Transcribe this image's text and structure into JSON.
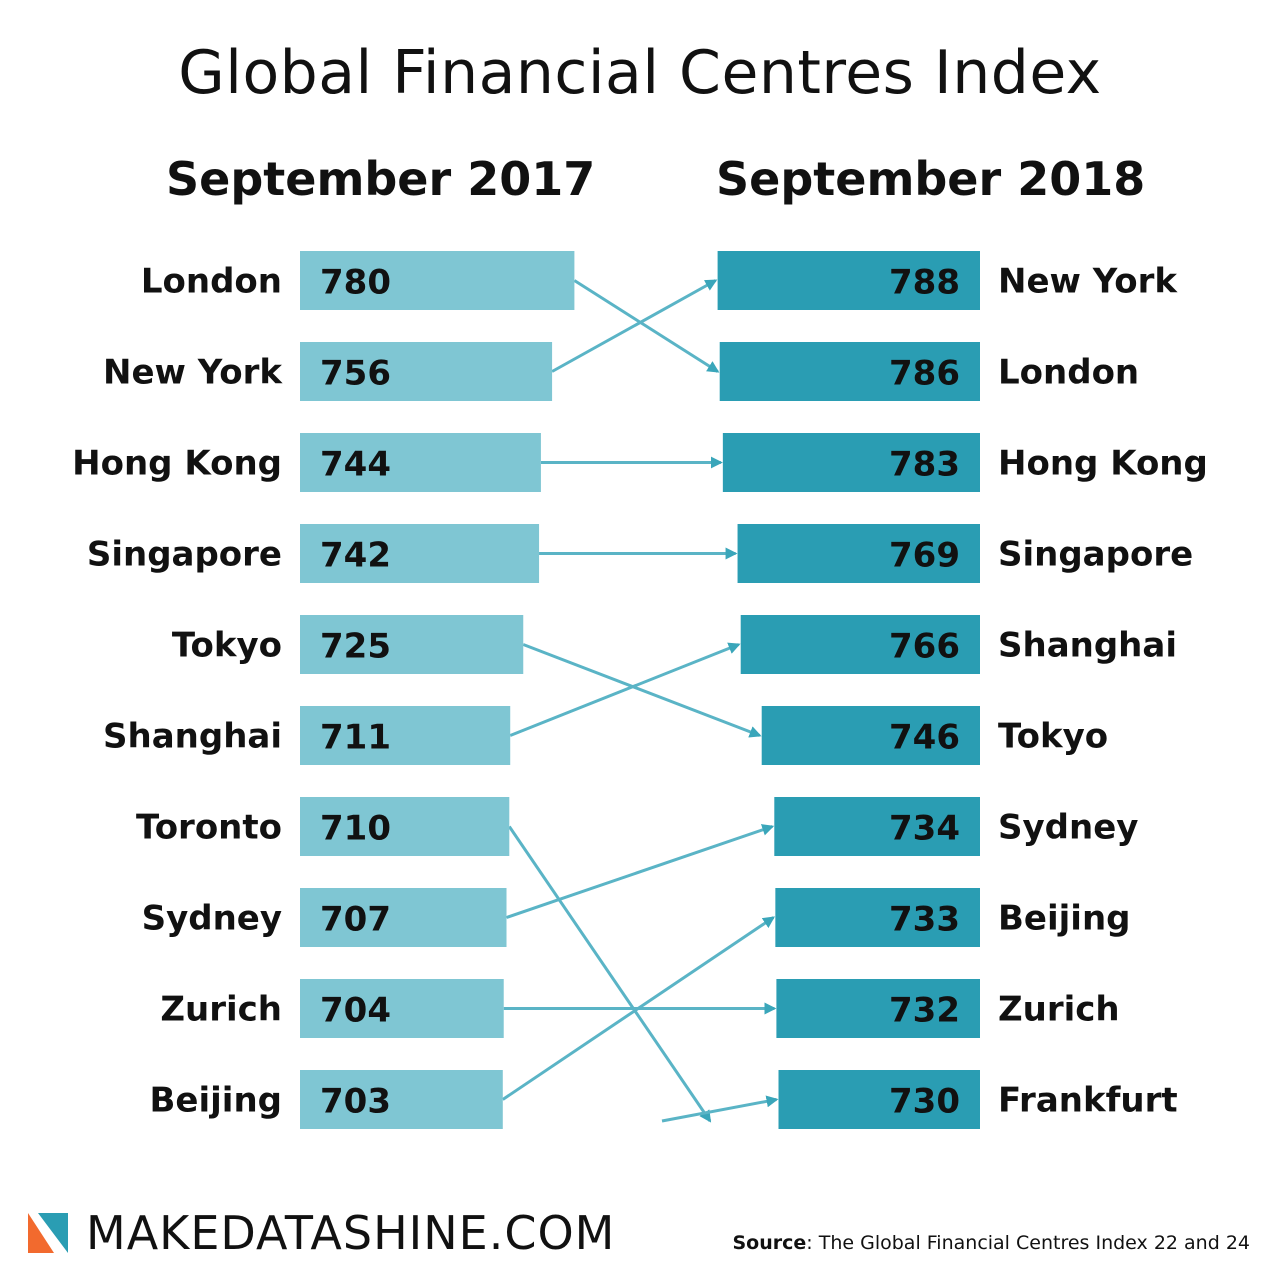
{
  "header": {
    "title": "Global Financial Centres Index"
  },
  "footer": {
    "brand": "MAKEDATASHINE.COM",
    "source_label": "Source",
    "source_text": ": The Global Financial Centres Index 22 and 24"
  },
  "colors": {
    "left_bar": "#7fc6d3",
    "right_bar": "#2a9db3",
    "connector": "#5ab4c6",
    "logo_orange": "#f26a2e",
    "logo_teal": "#2a9db3"
  },
  "chart_data": {
    "type": "slope",
    "left": {
      "label": "September 2017",
      "entries": [
        {
          "city": "London",
          "value": 780
        },
        {
          "city": "New York",
          "value": 756
        },
        {
          "city": "Hong Kong",
          "value": 744
        },
        {
          "city": "Singapore",
          "value": 742
        },
        {
          "city": "Tokyo",
          "value": 725
        },
        {
          "city": "Shanghai",
          "value": 711
        },
        {
          "city": "Toronto",
          "value": 710
        },
        {
          "city": "Sydney",
          "value": 707
        },
        {
          "city": "Zurich",
          "value": 704
        },
        {
          "city": "Beijing",
          "value": 703
        }
      ]
    },
    "right": {
      "label": "September 2018",
      "entries": [
        {
          "city": "New York",
          "value": 788
        },
        {
          "city": "London",
          "value": 786
        },
        {
          "city": "Hong Kong",
          "value": 783
        },
        {
          "city": "Singapore",
          "value": 769
        },
        {
          "city": "Shanghai",
          "value": 766
        },
        {
          "city": "Tokyo",
          "value": 746
        },
        {
          "city": "Sydney",
          "value": 734
        },
        {
          "city": "Beijing",
          "value": 733
        },
        {
          "city": "Zurich",
          "value": 732
        },
        {
          "city": "Frankfurt",
          "value": 730
        }
      ]
    }
  }
}
